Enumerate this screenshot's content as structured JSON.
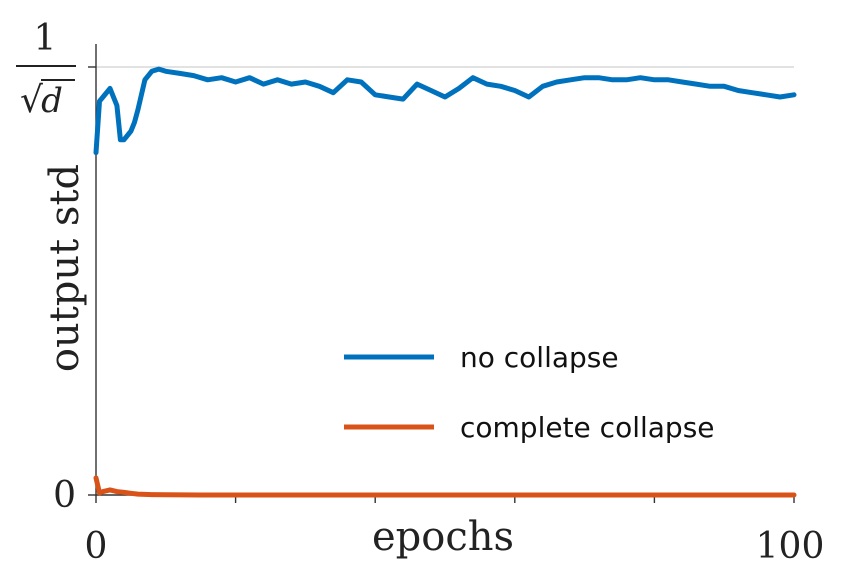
{
  "chart_data": {
    "type": "line",
    "xlabel": "epochs",
    "ylabel": "output std",
    "xlim": [
      0,
      100
    ],
    "ylim": [
      0,
      1
    ],
    "x_tick_labels": [
      {
        "value": 0,
        "label": "0"
      },
      {
        "value": 100,
        "label": "100"
      }
    ],
    "x_minor_ticks": [
      20,
      40,
      60,
      80
    ],
    "y_tick_labels": [
      {
        "value": 0,
        "label": "0"
      },
      {
        "value": 1,
        "numerator": "1",
        "denominator": "d",
        "radical": "√"
      }
    ],
    "reference_line": {
      "y": 1
    },
    "legend": {
      "placement": "center-right"
    },
    "colors": {
      "no_collapse": "#0072bd",
      "complete_collapse": "#d95319"
    },
    "series": [
      {
        "name": "no collapse",
        "color": "#0072bd",
        "x": [
          0,
          0.5,
          1,
          2,
          3,
          3.5,
          4,
          5,
          5.5,
          6,
          7,
          8,
          9,
          10,
          12,
          14,
          16,
          18,
          20,
          22,
          24,
          26,
          28,
          30,
          32,
          34,
          36,
          38,
          40,
          42,
          44,
          46,
          48,
          50,
          52,
          54,
          56,
          58,
          60,
          62,
          64,
          66,
          68,
          70,
          72,
          74,
          76,
          78,
          80,
          82,
          84,
          86,
          88,
          90,
          92,
          94,
          96,
          98,
          100
        ],
        "y": [
          0.8,
          0.92,
          0.93,
          0.95,
          0.91,
          0.83,
          0.83,
          0.85,
          0.87,
          0.9,
          0.97,
          0.99,
          0.995,
          0.99,
          0.985,
          0.98,
          0.97,
          0.975,
          0.965,
          0.975,
          0.96,
          0.97,
          0.96,
          0.965,
          0.955,
          0.94,
          0.97,
          0.965,
          0.935,
          0.93,
          0.925,
          0.96,
          0.945,
          0.93,
          0.95,
          0.975,
          0.96,
          0.955,
          0.945,
          0.93,
          0.955,
          0.965,
          0.97,
          0.975,
          0.975,
          0.97,
          0.97,
          0.975,
          0.97,
          0.97,
          0.965,
          0.96,
          0.955,
          0.955,
          0.945,
          0.94,
          0.935,
          0.93,
          0.935
        ]
      },
      {
        "name": "complete collapse",
        "color": "#d95319",
        "x": [
          0,
          0.5,
          1,
          2,
          3,
          4,
          5,
          6,
          8,
          10,
          15,
          20,
          30,
          40,
          50,
          60,
          70,
          80,
          90,
          100
        ],
        "y": [
          0.04,
          0.005,
          0.008,
          0.012,
          0.008,
          0.006,
          0.004,
          0.002,
          0.001,
          0.0005,
          0,
          0,
          0,
          0,
          0,
          0,
          0,
          0,
          0,
          0
        ]
      }
    ]
  }
}
